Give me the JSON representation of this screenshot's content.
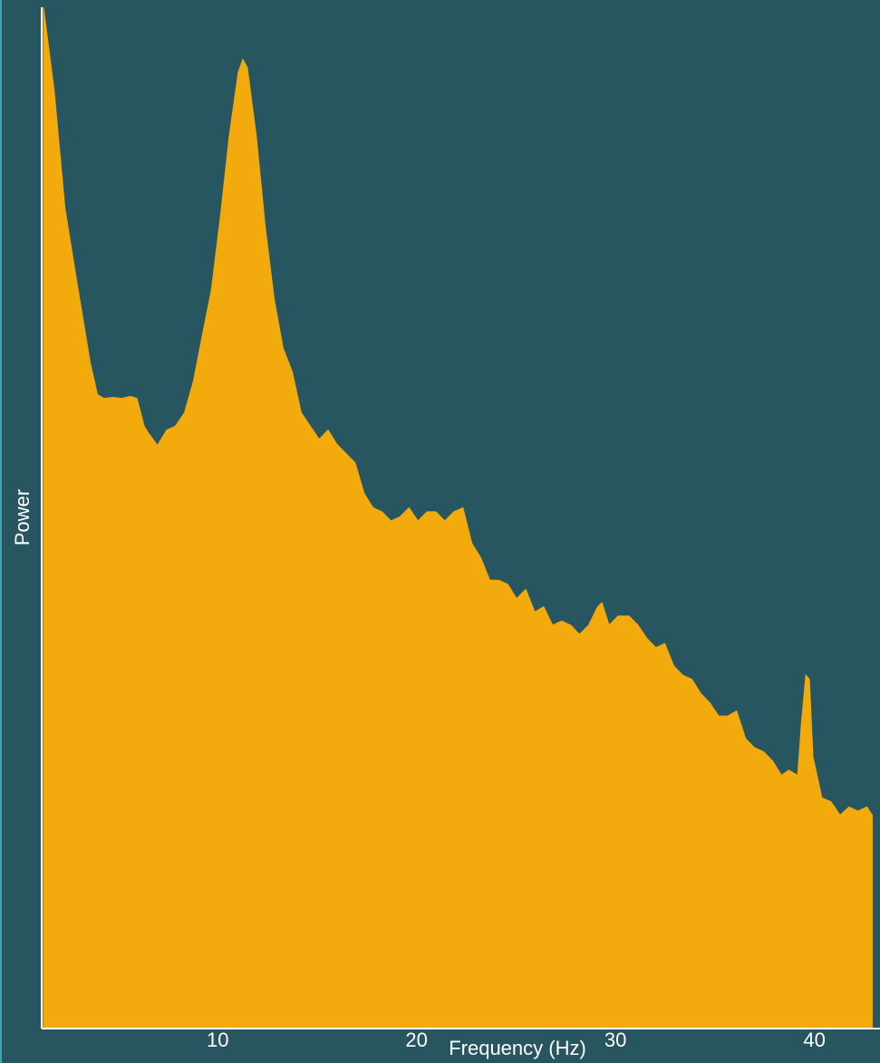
{
  "chart_data": {
    "type": "area",
    "x_label": "Frequency (Hz)",
    "y_label": "Power",
    "color": "#f2aa0c",
    "xlim": [
      1.15,
      43.3
    ],
    "ylim": [
      0,
      100
    ],
    "xticks": [
      10,
      20,
      30,
      40
    ],
    "x": [
      1.24,
      1.78,
      2.32,
      2.91,
      3.59,
      3.95,
      4.27,
      4.72,
      5.17,
      5.62,
      5.94,
      6.3,
      6.52,
      6.97,
      7.43,
      7.88,
      8.33,
      8.78,
      9.23,
      9.68,
      10.13,
      10.58,
      11.03,
      11.26,
      11.49,
      11.94,
      12.39,
      12.84,
      13.29,
      13.75,
      14.2,
      14.65,
      15.1,
      15.55,
      16.0,
      16.45,
      16.91,
      17.36,
      17.81,
      18.26,
      18.71,
      19.16,
      19.62,
      20.07,
      20.52,
      20.97,
      21.42,
      21.87,
      22.33,
      22.78,
      23.23,
      23.68,
      24.13,
      24.58,
      25.03,
      25.49,
      25.94,
      26.39,
      26.84,
      27.29,
      27.74,
      28.19,
      28.65,
      29.1,
      29.32,
      29.68,
      30.13,
      30.68,
      31.13,
      31.58,
      32.03,
      32.48,
      32.93,
      33.38,
      33.84,
      34.29,
      34.74,
      35.19,
      35.64,
      36.09,
      36.54,
      36.99,
      37.45,
      37.9,
      38.35,
      38.71,
      39.16,
      39.34,
      39.57,
      39.75,
      39.93,
      40.38,
      40.84,
      41.29,
      41.74,
      42.19,
      42.64,
      42.91
    ],
    "values": [
      100.0,
      91.8,
      80.3,
      73.2,
      65.2,
      62.1,
      61.7,
      61.8,
      61.7,
      61.9,
      61.7,
      59.0,
      58.3,
      57.1,
      58.6,
      59.0,
      60.3,
      63.4,
      67.9,
      72.3,
      79.4,
      87.4,
      93.6,
      94.9,
      94.1,
      87.4,
      78.5,
      71.4,
      66.6,
      64.3,
      60.3,
      59.0,
      57.7,
      58.6,
      57.2,
      56.3,
      55.4,
      52.4,
      51.0,
      50.6,
      49.7,
      50.1,
      51.0,
      49.7,
      50.6,
      50.6,
      49.7,
      50.6,
      51.0,
      47.5,
      46.1,
      43.9,
      43.9,
      43.5,
      42.1,
      43.0,
      40.8,
      41.3,
      39.5,
      39.9,
      39.5,
      38.6,
      39.5,
      41.3,
      41.7,
      39.5,
      40.4,
      40.4,
      39.5,
      38.2,
      37.3,
      37.7,
      35.5,
      34.6,
      34.2,
      32.8,
      31.9,
      30.6,
      30.6,
      31.1,
      28.4,
      27.5,
      27.1,
      26.2,
      24.8,
      25.3,
      24.8,
      29.7,
      34.6,
      34.2,
      26.6,
      22.6,
      22.2,
      20.9,
      21.7,
      21.3,
      21.7,
      20.9
    ]
  }
}
